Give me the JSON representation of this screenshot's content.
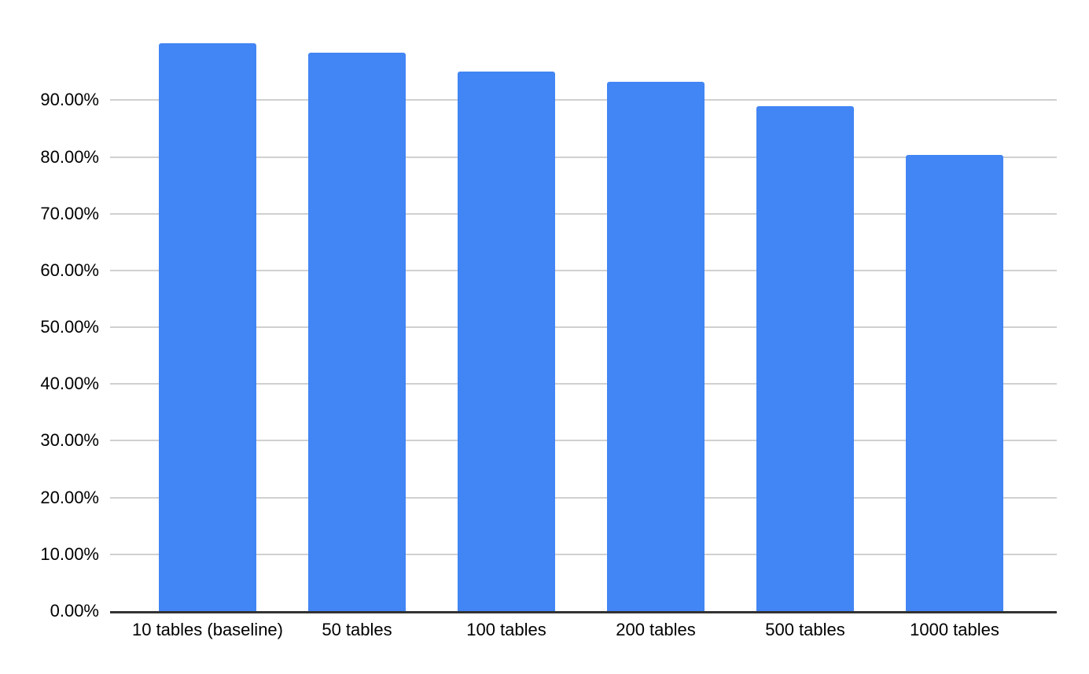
{
  "chart_data": {
    "type": "bar",
    "title": "",
    "xlabel": "",
    "ylabel": "",
    "categories": [
      "10 tables (baseline)",
      "50 tables",
      "100 tables",
      "200 tables",
      "500 tables",
      "1000 tables"
    ],
    "values": [
      100.0,
      98.4,
      95.1,
      93.3,
      89.0,
      80.3
    ],
    "unit": "%",
    "ylim": [
      0,
      103.5
    ],
    "ytick_values": [
      0,
      10,
      20,
      30,
      40,
      50,
      60,
      70,
      80,
      90
    ],
    "ytick_labels": [
      "0.00%",
      "10.00%",
      "20.00%",
      "30.00%",
      "40.00%",
      "50.00%",
      "60.00%",
      "70.00%",
      "80.00%",
      "90.00%"
    ],
    "grid": true,
    "legend_position": "none",
    "bar_color": "#4285f4",
    "gridline_color": "#d0d0d0",
    "axis_line_color": "#333333",
    "label_color": "#000000",
    "background_color": "#ffffff"
  }
}
